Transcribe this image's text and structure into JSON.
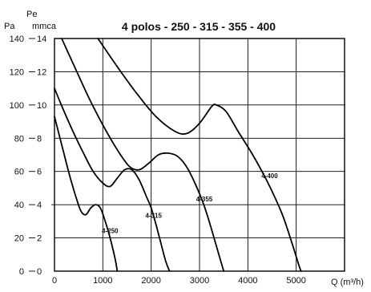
{
  "chart_data": {
    "type": "line",
    "title": "4 polos - 250 - 315 - 355 - 400",
    "ylabel_top": "Pe",
    "ylabel_left": "Pa",
    "ylabel_right": "mmca",
    "xlabel": "Q (m³/h)",
    "x_range": [
      0,
      6000
    ],
    "x_ticks": [
      0,
      1000,
      2000,
      3000,
      4000,
      5000
    ],
    "x_tick_labels": [
      "0",
      "1000",
      "2000",
      "3000",
      "4000",
      "5000"
    ],
    "y_range_mmca": [
      0,
      14
    ],
    "y_ticks_mmca": [
      0,
      2,
      4,
      6,
      8,
      10,
      12,
      14
    ],
    "y_ticks_pa": [
      0,
      20,
      40,
      60,
      80,
      100,
      120,
      140
    ],
    "grid": true,
    "series": [
      {
        "name": "4-250",
        "points": [
          [
            0,
            9.3
          ],
          [
            150,
            7.6
          ],
          [
            300,
            5.9
          ],
          [
            450,
            4.4
          ],
          [
            550,
            3.6
          ],
          [
            650,
            3.4
          ],
          [
            750,
            3.8
          ],
          [
            850,
            4.0
          ],
          [
            950,
            3.8
          ],
          [
            1050,
            3.0
          ],
          [
            1150,
            2.0
          ],
          [
            1250,
            0.8
          ],
          [
            1300,
            0
          ]
        ]
      },
      {
        "name": "4-315",
        "points": [
          [
            0,
            11.0
          ],
          [
            200,
            9.6
          ],
          [
            400,
            8.3
          ],
          [
            600,
            7.1
          ],
          [
            800,
            6.0
          ],
          [
            1000,
            5.3
          ],
          [
            1150,
            5.1
          ],
          [
            1300,
            5.6
          ],
          [
            1450,
            6.1
          ],
          [
            1600,
            6.1
          ],
          [
            1750,
            5.5
          ],
          [
            1900,
            4.5
          ],
          [
            2000,
            3.8
          ],
          [
            2100,
            2.8
          ],
          [
            2200,
            1.7
          ],
          [
            2300,
            0.6
          ],
          [
            2380,
            0
          ]
        ]
      },
      {
        "name": "4-355",
        "points": [
          [
            150,
            14.0
          ],
          [
            400,
            12.4
          ],
          [
            700,
            10.5
          ],
          [
            1000,
            8.8
          ],
          [
            1300,
            7.3
          ],
          [
            1550,
            6.3
          ],
          [
            1750,
            6.1
          ],
          [
            1950,
            6.5
          ],
          [
            2150,
            7.0
          ],
          [
            2350,
            7.1
          ],
          [
            2550,
            6.9
          ],
          [
            2750,
            6.2
          ],
          [
            2950,
            5.0
          ],
          [
            3100,
            3.9
          ],
          [
            3250,
            2.5
          ],
          [
            3400,
            1.0
          ],
          [
            3500,
            0
          ]
        ]
      },
      {
        "name": "4-400",
        "points": [
          [
            900,
            14.0
          ],
          [
            1300,
            12.3
          ],
          [
            1700,
            10.7
          ],
          [
            2100,
            9.3
          ],
          [
            2500,
            8.4
          ],
          [
            2750,
            8.3
          ],
          [
            3000,
            8.9
          ],
          [
            3250,
            9.9
          ],
          [
            3350,
            10.0
          ],
          [
            3550,
            9.6
          ],
          [
            3800,
            8.4
          ],
          [
            4100,
            7.0
          ],
          [
            4400,
            5.4
          ],
          [
            4700,
            3.5
          ],
          [
            4900,
            1.8
          ],
          [
            5050,
            0.4
          ],
          [
            5100,
            0
          ]
        ]
      }
    ],
    "curve_labels": [
      {
        "text": "4-250",
        "x": 1150,
        "y": 2.3
      },
      {
        "text": "4-315",
        "x": 2050,
        "y": 3.2
      },
      {
        "text": "4-355",
        "x": 3100,
        "y": 4.2
      },
      {
        "text": "4-400",
        "x": 4450,
        "y": 5.6
      }
    ]
  }
}
